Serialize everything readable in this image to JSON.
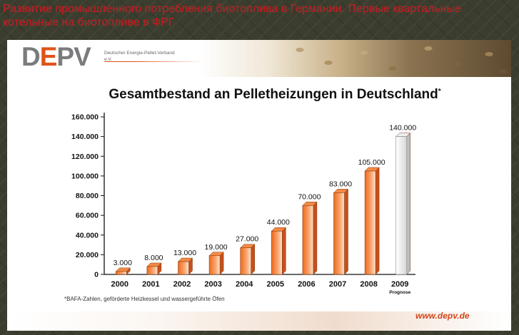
{
  "slide": {
    "title": "Развитие промышленного потребления биотоплива в Германии. Первые квартальные котельные на биотопливе в ФРГ"
  },
  "header": {
    "logo_text_a": "D",
    "logo_text_accent": "E",
    "logo_text_b": "PV",
    "logo_subtitle": "Deutscher Energie-Pellet-Verband e.V."
  },
  "footer": {
    "footnote": "*BAFA-Zahlen, geförderte Heizkessel und wassergeführte Öfen",
    "url": "www.depv.de"
  },
  "colors": {
    "bar_orange": "#ef6a1e",
    "bar_orange_light": "#fde3cf",
    "bar_forecast": "#f5f5f5",
    "brand_accent": "#e0521a",
    "title_red": "#c8161d"
  },
  "chart_data": {
    "type": "bar",
    "title": "Gesamtbestand an Pelletheizungen in Deutschland",
    "title_mark": "*",
    "categories": [
      "2000",
      "2001",
      "2002",
      "2003",
      "2004",
      "2005",
      "2006",
      "2007",
      "2008",
      "2009"
    ],
    "category_notes": {
      "2009": "Prognose"
    },
    "values": [
      3000,
      8000,
      13000,
      19000,
      27000,
      44000,
      70000,
      83000,
      105000,
      140000
    ],
    "value_labels": [
      "3.000",
      "8.000",
      "13.000",
      "19.000",
      "27.000",
      "44.000",
      "70.000",
      "83.000",
      "105.000",
      "140.000"
    ],
    "forecast_index": 9,
    "ylim": [
      0,
      160000
    ],
    "yticks": [
      0,
      20000,
      40000,
      60000,
      80000,
      100000,
      120000,
      140000,
      160000
    ],
    "ytick_labels": [
      "0",
      "20.000",
      "40.000",
      "60.000",
      "80.000",
      "100.000",
      "120.000",
      "140.000",
      "160.000"
    ],
    "grid": false,
    "legend": "none"
  }
}
